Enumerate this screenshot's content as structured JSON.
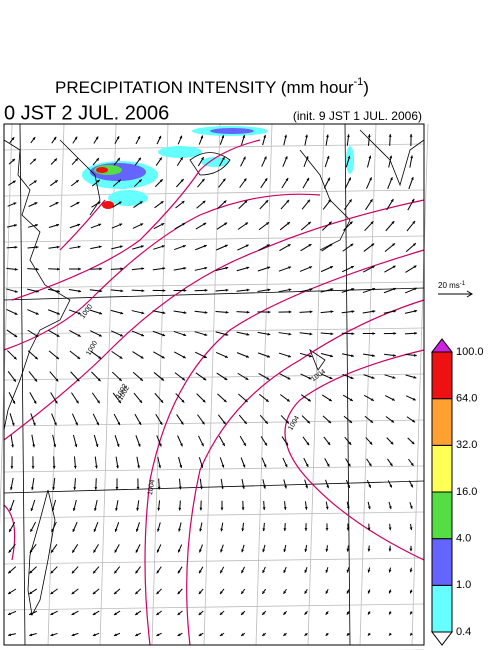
{
  "title": {
    "text": "PRECIPITATION INTENSITY (mm hour",
    "sup": "-1",
    "close": ")"
  },
  "valid_time": "0 JST 2 JUL. 2006",
  "init_time": "(init. 9 JST 1 JUL. 2006)",
  "wind_scale": {
    "text": "20 ms",
    "sup": "-1"
  },
  "colorbar": {
    "levels": [
      {
        "label": "0.4",
        "color": "#66ffff"
      },
      {
        "label": "1.0",
        "color": "#6464ff"
      },
      {
        "label": "4.0",
        "color": "#55dd44"
      },
      {
        "label": "16.0",
        "color": "#ffff55"
      },
      {
        "label": "32.0",
        "color": "#ffa030"
      },
      {
        "label": "64.0",
        "color": "#ee1111"
      },
      {
        "label": "100.0",
        "color": "#cc22dd"
      }
    ]
  },
  "isobar_labels": [
    "1000",
    "1002",
    "1000",
    "1002",
    "1004",
    "1004",
    "1004"
  ]
}
